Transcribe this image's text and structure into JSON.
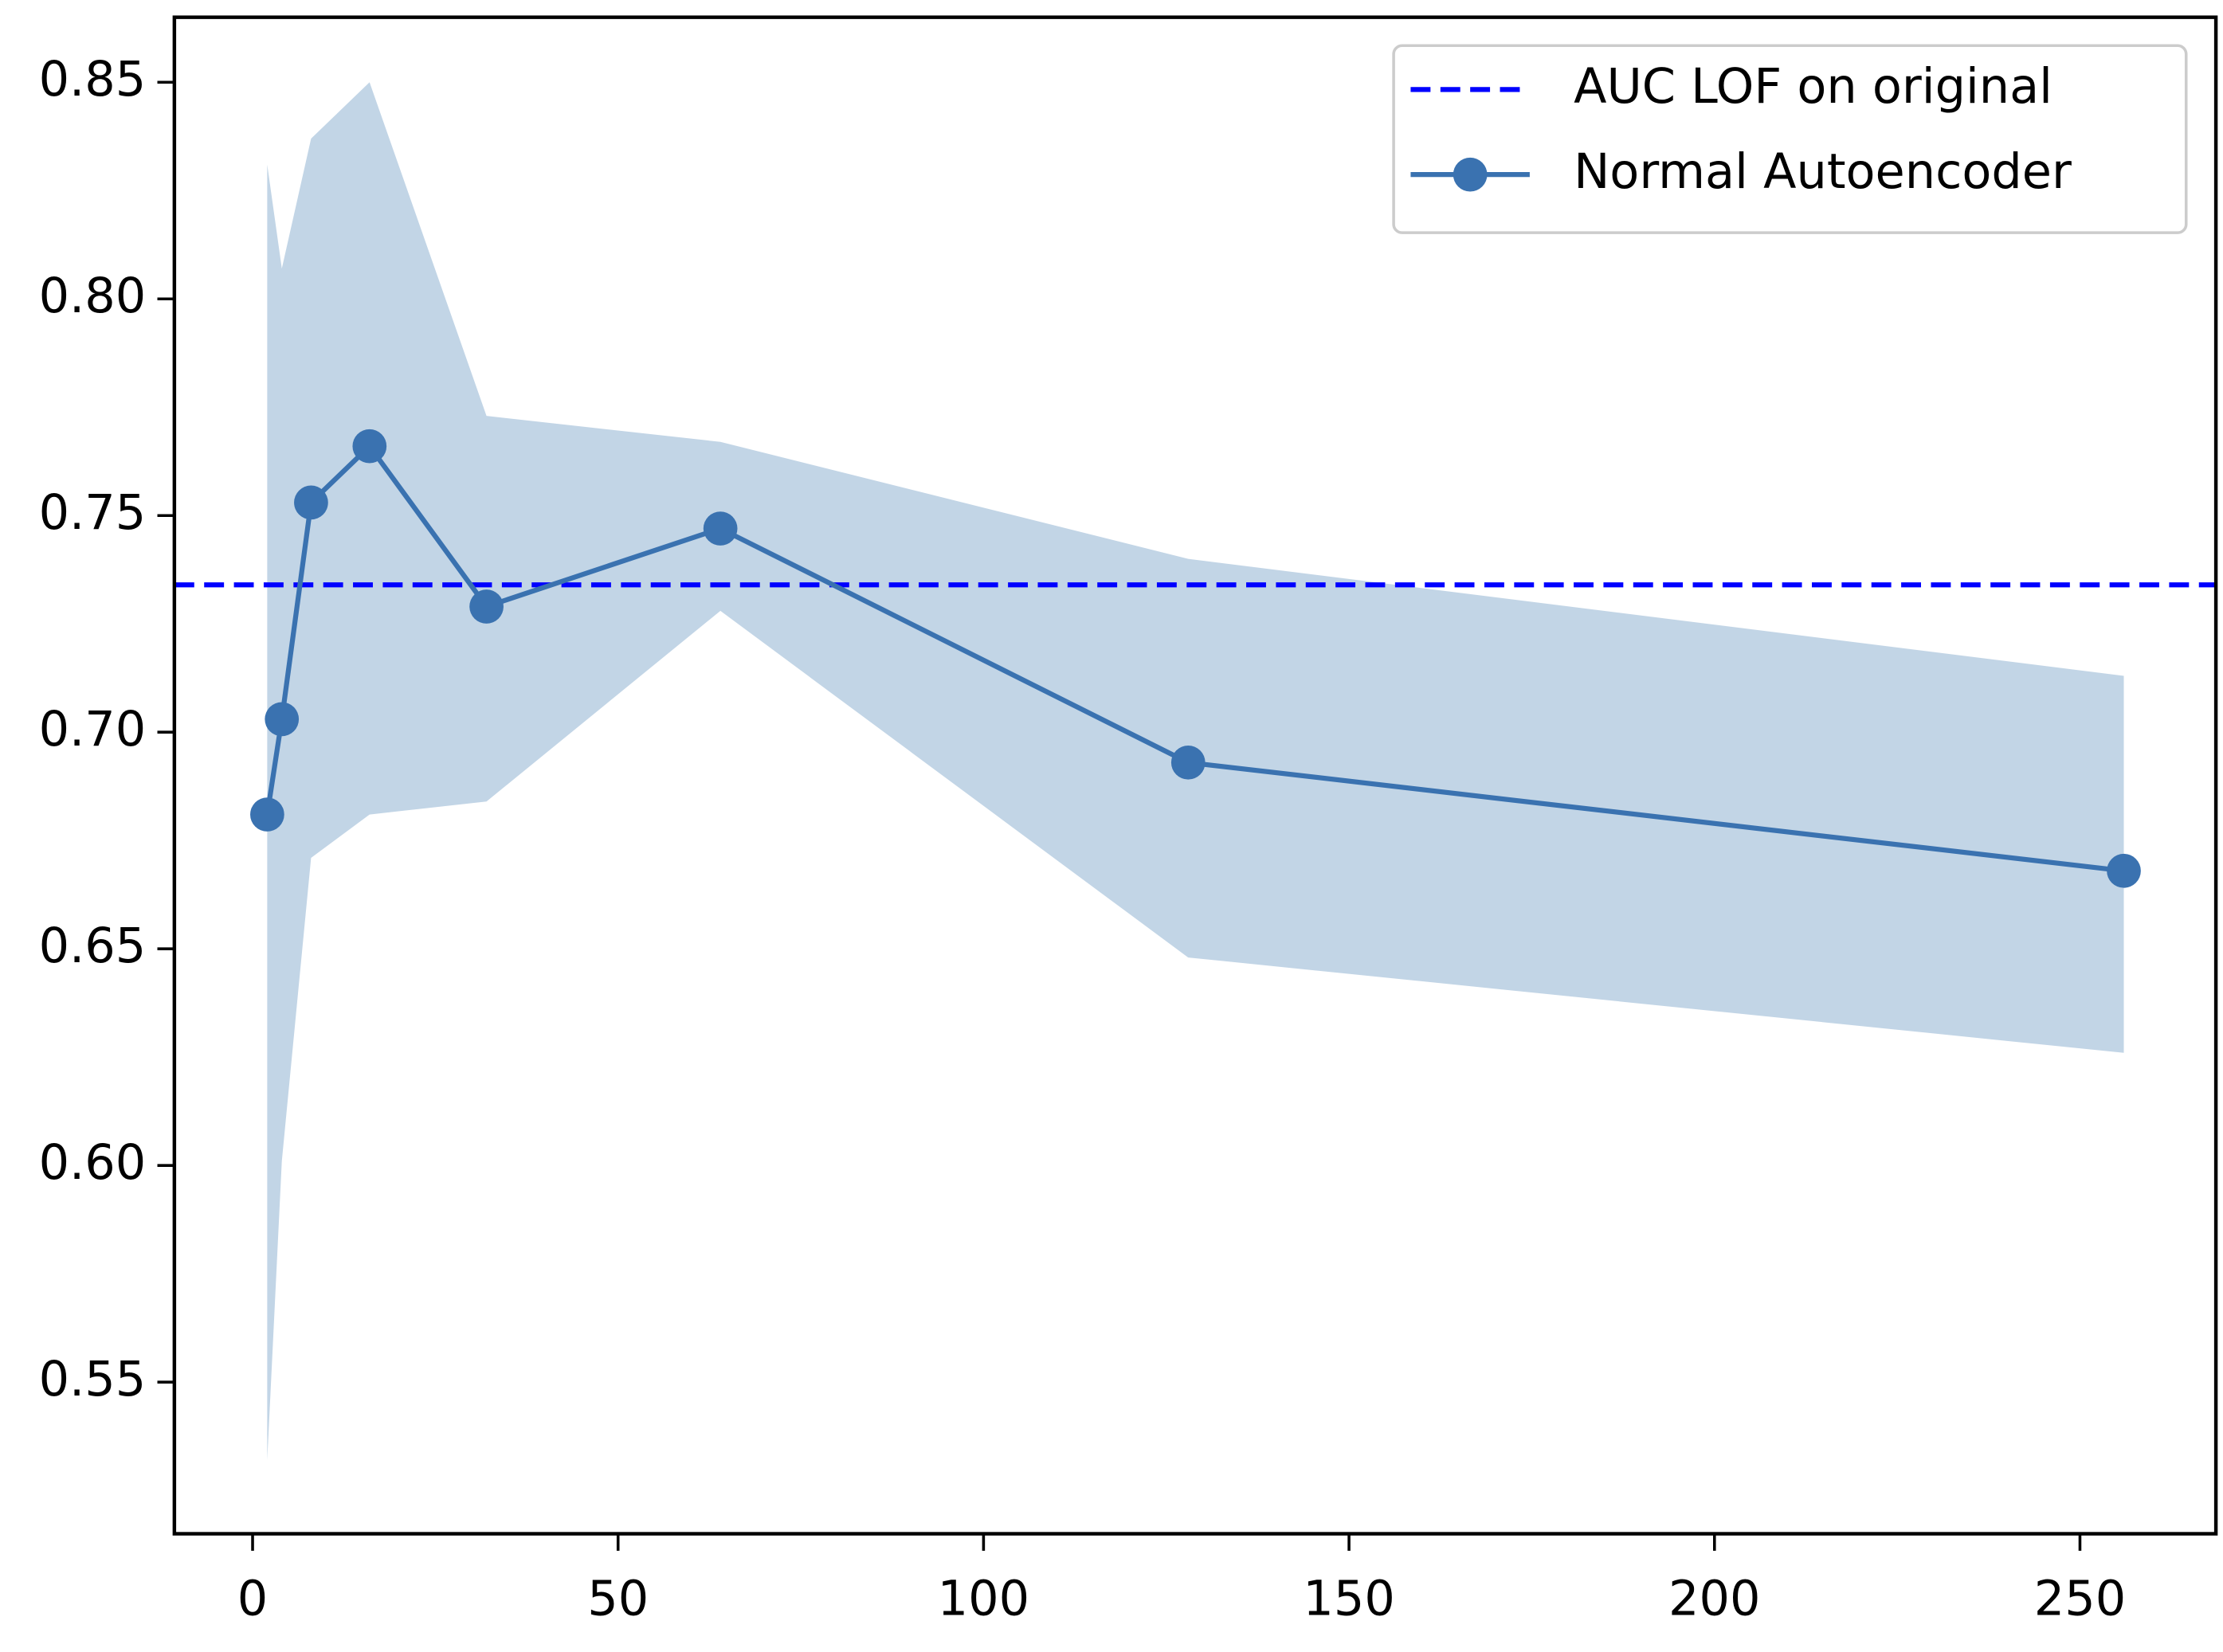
{
  "chart_data": {
    "type": "line",
    "x": [
      2,
      4,
      8,
      16,
      32,
      64,
      128,
      256
    ],
    "xlim": [
      -10.7,
      268.6
    ],
    "ylim": [
      0.515,
      0.865
    ],
    "xticks": [
      0,
      50,
      100,
      150,
      200,
      250
    ],
    "yticks": [
      {
        "value": 0.55,
        "label": "0.55"
      },
      {
        "value": 0.6,
        "label": "0.60"
      },
      {
        "value": 0.65,
        "label": "0.65"
      },
      {
        "value": 0.7,
        "label": "0.70"
      },
      {
        "value": 0.75,
        "label": "0.75"
      },
      {
        "value": 0.8,
        "label": "0.80"
      },
      {
        "value": 0.85,
        "label": "0.85"
      }
    ],
    "reference_line": {
      "name": "AUC LOF on original",
      "value": 0.734,
      "color": "#0000ff"
    },
    "series": [
      {
        "name": "Normal Autoencoder",
        "color": "#3a72b0",
        "band_color": "#c2d5e6",
        "values": [
          0.681,
          0.703,
          0.753,
          0.766,
          0.729,
          0.747,
          0.693,
          0.668
        ],
        "upper": [
          0.831,
          0.807,
          0.837,
          0.85,
          0.773,
          0.767,
          0.74,
          0.713
        ],
        "lower": [
          0.532,
          0.601,
          0.671,
          0.681,
          0.684,
          0.728,
          0.648,
          0.626
        ]
      }
    ],
    "legend": "upper right"
  }
}
